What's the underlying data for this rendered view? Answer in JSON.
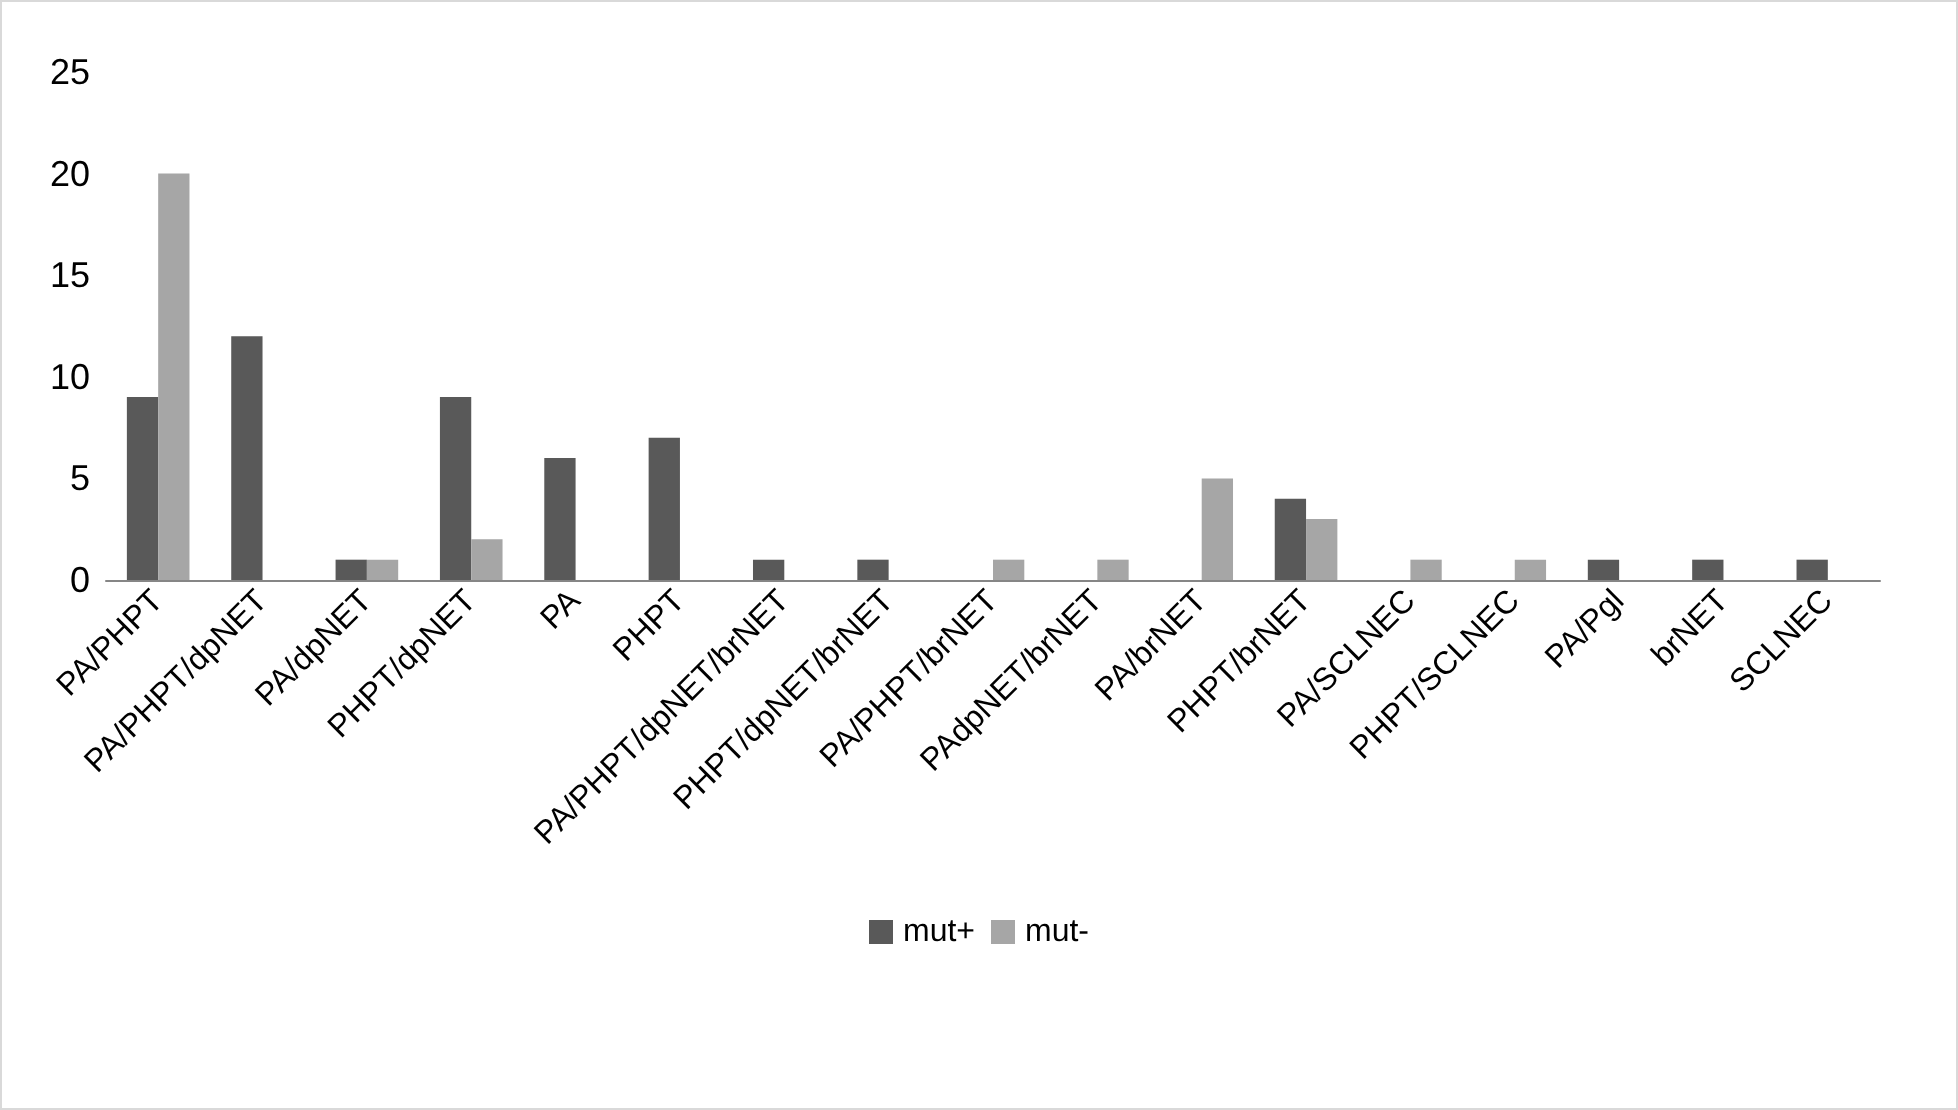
{
  "chart_data": {
    "type": "bar",
    "categories": [
      "PA/PHPT",
      "PA/PHPT/dpNET",
      "PA/dpNET",
      "PHPT/dpNET",
      "PA",
      "PHPT",
      "PA/PHPT/dpNET/brNET",
      "PHPT/dpNET/brNET",
      "PA/PHPT/brNET",
      "PAdpNET/brNET",
      "PA/brNET",
      "PHPT/brNET",
      "PA/SCLNEC",
      "PHPT/SCLNEC",
      "PA/Pgl",
      "brNET",
      "SCLNEC"
    ],
    "series": [
      {
        "name": "mut+",
        "color": "#595959",
        "values": [
          9,
          12,
          1,
          9,
          6,
          7,
          1,
          1,
          0,
          0,
          0,
          4,
          0,
          0,
          1,
          1,
          1
        ]
      },
      {
        "name": "mut-",
        "color": "#a6a6a6",
        "values": [
          20,
          0,
          1,
          2,
          0,
          0,
          0,
          0,
          1,
          1,
          5,
          3,
          1,
          1,
          0,
          0,
          0
        ]
      }
    ],
    "ylim": [
      0,
      25
    ],
    "yticks": [
      0,
      5,
      10,
      15,
      20,
      25
    ],
    "grid": false,
    "legend": "bottom"
  }
}
